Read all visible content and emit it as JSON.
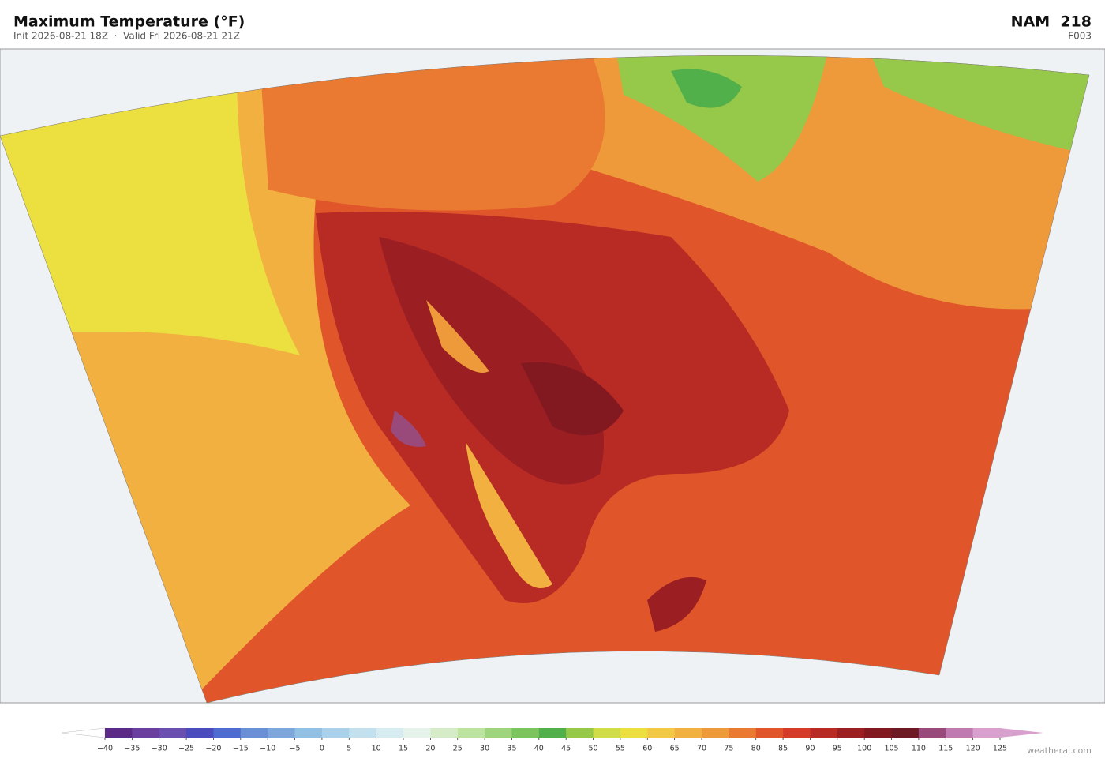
{
  "header": {
    "title": "Maximum Temperature  (°F)",
    "subtitle": "Init 2026-08-21 18Z  ·  Valid Fri 2026-08-21 21Z",
    "model": "NAM  218",
    "forecast_hour": "F003"
  },
  "colorbar": {
    "ticks": [
      {
        "value": -40,
        "label": "−40"
      },
      {
        "value": -35,
        "label": "−35"
      },
      {
        "value": -30,
        "label": "−30"
      },
      {
        "value": -25,
        "label": "−25"
      },
      {
        "value": -20,
        "label": "−20"
      },
      {
        "value": -15,
        "label": "−15"
      },
      {
        "value": -10,
        "label": "−10"
      },
      {
        "value": -5,
        "label": "−5"
      },
      0,
      5,
      10,
      15,
      20,
      25,
      30,
      35,
      40,
      45,
      50,
      55,
      60,
      65,
      70,
      75,
      80,
      85,
      90,
      95,
      100,
      105,
      110,
      115,
      120,
      125
    ],
    "colors": [
      "#5b2a86",
      "#6b3fa0",
      "#6a4fb0",
      "#4a4bbd",
      "#4f6bd0",
      "#6b8fd6",
      "#7fa6dc",
      "#93bfe2",
      "#aad0ea",
      "#c2e0ee",
      "#d6ecf0",
      "#e6f3ea",
      "#d6ecc8",
      "#bde3a0",
      "#9fd47c",
      "#7cc45e",
      "#52b04a",
      "#96c84a",
      "#d0dc48",
      "#ece040",
      "#f3c845",
      "#f2b040",
      "#ef9a3a",
      "#ea7a32",
      "#e0562a",
      "#d43c28",
      "#b82a24",
      "#9a1e22",
      "#821820",
      "#6e1a24",
      "#9a4a7a",
      "#c07ab0",
      "#d8a0cc"
    ],
    "under_color": "#ffffff",
    "over_color": "#d8a0cc"
  },
  "footer": {
    "credit": "weatherai.com"
  }
}
